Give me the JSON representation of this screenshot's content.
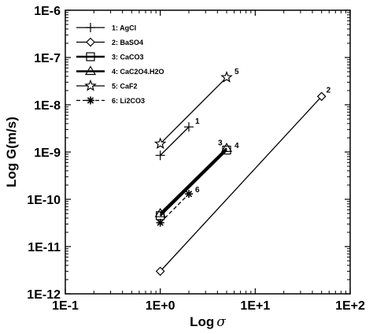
{
  "chart_data": {
    "type": "line",
    "title": "",
    "xlabel_prefix": "Log",
    "xlabel_symbol": "σ",
    "ylabel": "Log G(m/s)",
    "x_scale": "log",
    "y_scale": "log",
    "xlim": [
      0.1,
      100
    ],
    "ylim": [
      1e-12,
      1e-06
    ],
    "x_ticks": [
      0.1,
      1,
      10,
      100
    ],
    "x_tick_labels": [
      "1E-1",
      "1E+0",
      "1E+1",
      "1E+2"
    ],
    "y_ticks": [
      1e-12,
      1e-11,
      1e-10,
      1e-09,
      1e-08,
      1e-07,
      1e-06
    ],
    "y_tick_labels": [
      "1E-12",
      "1E-11",
      "1E-10",
      "1E-9",
      "1E-8",
      "1E-7",
      "1E-6"
    ],
    "grid": false,
    "legend_position": "top-left",
    "series": [
      {
        "name": "1: AgCl",
        "label": "1",
        "marker": "plus",
        "line": "solid",
        "width": 1,
        "x": [
          1,
          2
        ],
        "y": [
          8.5e-10,
          3.4e-09
        ]
      },
      {
        "name": "2: BaSO4",
        "label": "2",
        "marker": "diamond",
        "line": "solid",
        "width": 1,
        "x": [
          1,
          50
        ],
        "y": [
          3e-12,
          1.5e-08
        ]
      },
      {
        "name": "3: CaCO3",
        "label": "3",
        "marker": "square",
        "line": "solid",
        "width": 2,
        "x": [
          1,
          5
        ],
        "y": [
          4.5e-11,
          1.1e-09
        ]
      },
      {
        "name": "4: CaC2O4.H2O",
        "label": "4",
        "marker": "triangle",
        "line": "solid",
        "width": 2,
        "x": [
          1,
          5
        ],
        "y": [
          5e-11,
          1.2e-09
        ]
      },
      {
        "name": "5: CaF2",
        "label": "5",
        "marker": "star",
        "line": "solid",
        "width": 1,
        "x": [
          1,
          5
        ],
        "y": [
          1.5e-09,
          3.8e-08
        ]
      },
      {
        "name": "6: Li2CO3",
        "label": "6",
        "marker": "asterisk",
        "line": "dashed",
        "width": 1,
        "x": [
          1,
          2
        ],
        "y": [
          3.2e-11,
          1.3e-10
        ]
      }
    ]
  }
}
